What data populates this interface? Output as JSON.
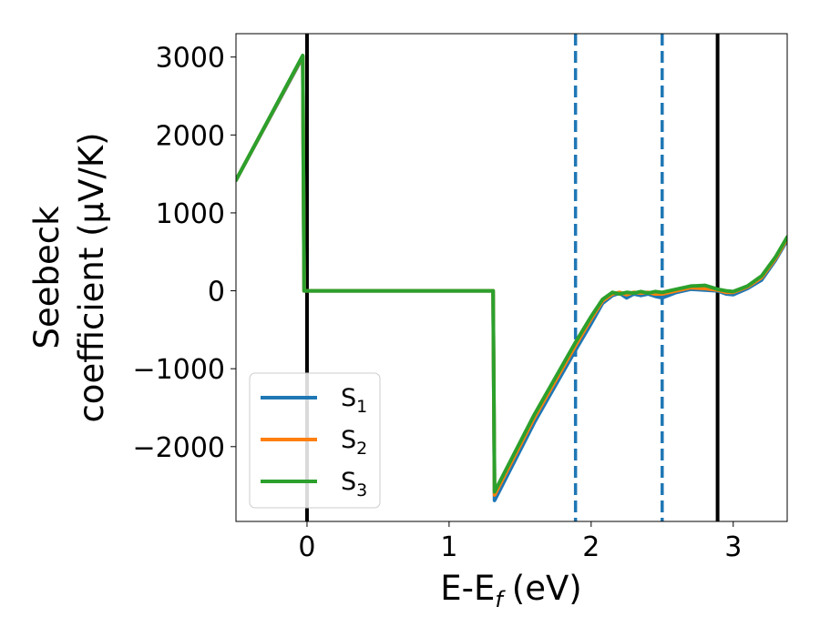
{
  "chart_data": {
    "type": "line",
    "xlabel": "E-E",
    "xlabel_subscript": "f",
    "xlabel_unit": "(eV)",
    "ylabel_line1": "Seebeck",
    "ylabel_line2": "coefficient  (μV/K)",
    "xlim": [
      -0.5,
      3.38
    ],
    "ylim": [
      -2960,
      3300
    ],
    "xticks": [
      0,
      1,
      2,
      3
    ],
    "xtick_labels": [
      "0",
      "1",
      "2",
      "3"
    ],
    "yticks": [
      -2000,
      -1000,
      0,
      1000,
      2000,
      3000
    ],
    "ytick_labels": [
      "−2000",
      "−1000",
      "0",
      "1000",
      "2000",
      "3000"
    ],
    "grid": false,
    "legend_position": "lower-left",
    "vlines": [
      {
        "x": 0.0,
        "style": "solid",
        "color": "#000000"
      },
      {
        "x": 2.89,
        "style": "solid",
        "color": "#000000"
      },
      {
        "x": 1.89,
        "style": "dashed",
        "color": "#1f77b4"
      },
      {
        "x": 2.5,
        "style": "dashed",
        "color": "#1f77b4"
      }
    ],
    "series": [
      {
        "name": "S",
        "subscript": "1",
        "color": "#1f77b4",
        "x": [
          -0.5,
          -0.03,
          -0.02,
          1.31,
          1.32,
          1.6,
          1.89,
          2.0,
          2.08,
          2.15,
          2.2,
          2.25,
          2.3,
          2.35,
          2.4,
          2.45,
          2.5,
          2.6,
          2.7,
          2.8,
          2.89,
          2.95,
          3.0,
          3.1,
          3.2,
          3.3,
          3.38
        ],
        "y": [
          1420,
          3000,
          0,
          0,
          -2690,
          -1690,
          -760,
          -420,
          -160,
          -60,
          -30,
          -90,
          -40,
          -60,
          -40,
          -70,
          -90,
          -20,
          20,
          10,
          0,
          -40,
          -50,
          30,
          140,
          400,
          650
        ]
      },
      {
        "name": "S",
        "subscript": "2",
        "color": "#ff7f0e",
        "x": [
          -0.5,
          -0.03,
          -0.02,
          1.31,
          1.32,
          1.6,
          1.89,
          2.0,
          2.08,
          2.15,
          2.2,
          2.25,
          2.3,
          2.35,
          2.4,
          2.45,
          2.5,
          2.6,
          2.7,
          2.8,
          2.89,
          2.95,
          3.0,
          3.1,
          3.2,
          3.3,
          3.38
        ],
        "y": [
          1420,
          3010,
          0,
          0,
          -2620,
          -1630,
          -700,
          -360,
          -130,
          -40,
          -20,
          -50,
          -20,
          -30,
          -20,
          -40,
          -40,
          0,
          40,
          30,
          10,
          -20,
          -20,
          50,
          170,
          420,
          670
        ]
      },
      {
        "name": "S",
        "subscript": "3",
        "color": "#2ca02c",
        "x": [
          -0.5,
          -0.03,
          -0.02,
          1.31,
          1.32,
          1.6,
          1.89,
          2.0,
          2.08,
          2.15,
          2.2,
          2.25,
          2.3,
          2.35,
          2.4,
          2.45,
          2.5,
          2.6,
          2.7,
          2.8,
          2.89,
          2.95,
          3.0,
          3.1,
          3.2,
          3.3,
          3.38
        ],
        "y": [
          1420,
          3020,
          0,
          0,
          -2580,
          -1590,
          -660,
          -330,
          -110,
          -20,
          -40,
          -20,
          -30,
          -10,
          -30,
          -10,
          -20,
          20,
          60,
          70,
          20,
          0,
          -10,
          60,
          190,
          440,
          690
        ]
      }
    ]
  }
}
